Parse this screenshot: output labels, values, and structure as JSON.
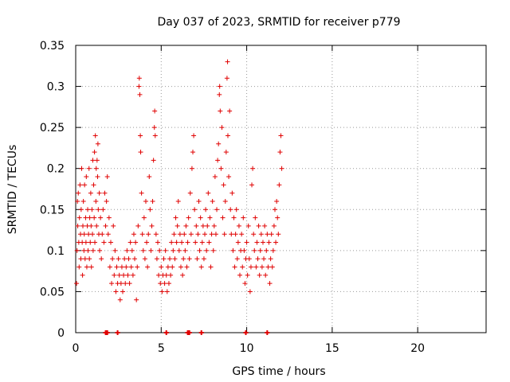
{
  "chart_data": {
    "type": "scatter",
    "title": "Day 037 of 2023, SRMTID for receiver p779",
    "xlabel": "GPS time / hours",
    "ylabel": "SRMTID / TECUs",
    "xlim": [
      0,
      24
    ],
    "ylim": [
      0,
      0.35
    ],
    "xticks": [
      0,
      5,
      10,
      15,
      20
    ],
    "xtick_labels": [
      "0",
      "5",
      "10",
      "15",
      "20"
    ],
    "yticks": [
      0,
      0.05,
      0.1,
      0.15,
      0.2,
      0.25,
      0.3,
      0.35
    ],
    "ytick_labels": [
      "0",
      "0.05",
      "0.1",
      "0.15",
      "0.2",
      "0.25",
      "0.3",
      "0.35"
    ],
    "grid": true,
    "marker": "+",
    "series_color": "#e00000",
    "series": [
      {
        "name": "SRMTID",
        "points": [
          [
            0.05,
            0.06
          ],
          [
            0.08,
            0.1
          ],
          [
            0.1,
            0.16
          ],
          [
            0.12,
            0.13
          ],
          [
            0.15,
            0.17
          ],
          [
            0.18,
            0.11
          ],
          [
            0.2,
            0.08
          ],
          [
            0.22,
            0.14
          ],
          [
            0.25,
            0.18
          ],
          [
            0.28,
            0.12
          ],
          [
            0.3,
            0.09
          ],
          [
            0.32,
            0.15
          ],
          [
            0.35,
            0.2
          ],
          [
            0.38,
            0.11
          ],
          [
            0.4,
            0.07
          ],
          [
            0.42,
            0.13
          ],
          [
            0.45,
            0.16
          ],
          [
            0.48,
            0.1
          ],
          [
            0.5,
            0.12
          ],
          [
            0.52,
            0.18
          ],
          [
            0.55,
            0.09
          ],
          [
            0.58,
            0.14
          ],
          [
            0.6,
            0.11
          ],
          [
            0.62,
            0.19
          ],
          [
            0.65,
            0.08
          ],
          [
            0.68,
            0.13
          ],
          [
            0.7,
            0.15
          ],
          [
            0.72,
            0.1
          ],
          [
            0.75,
            0.12
          ],
          [
            0.78,
            0.2
          ],
          [
            0.8,
            0.09
          ],
          [
            0.82,
            0.14
          ],
          [
            0.85,
            0.11
          ],
          [
            0.88,
            0.17
          ],
          [
            0.9,
            0.13
          ],
          [
            0.92,
            0.08
          ],
          [
            0.95,
            0.15
          ],
          [
            0.98,
            0.12
          ],
          [
            1.0,
            0.21
          ],
          [
            1.02,
            0.1
          ],
          [
            1.05,
            0.18
          ],
          [
            1.08,
            0.14
          ],
          [
            1.1,
            0.22
          ],
          [
            1.12,
            0.11
          ],
          [
            1.15,
            0.24
          ],
          [
            1.18,
            0.16
          ],
          [
            1.2,
            0.2
          ],
          [
            1.22,
            0.13
          ],
          [
            1.25,
            0.21
          ],
          [
            1.28,
            0.19
          ],
          [
            1.3,
            0.23
          ],
          [
            1.32,
            0.15
          ],
          [
            1.35,
            0.12
          ],
          [
            1.38,
            0.17
          ],
          [
            1.4,
            0.1
          ],
          [
            1.45,
            0.14
          ],
          [
            1.5,
            0.09
          ],
          [
            1.55,
            0.12
          ],
          [
            1.6,
            0.15
          ],
          [
            1.65,
            0.11
          ],
          [
            1.7,
            0.17
          ],
          [
            1.75,
            0.13
          ],
          [
            1.8,
            0.16
          ],
          [
            1.85,
            0.19
          ],
          [
            1.9,
            0.12
          ],
          [
            1.95,
            0.14
          ],
          [
            2.0,
            0.08
          ],
          [
            2.05,
            0.11
          ],
          [
            2.1,
            0.06
          ],
          [
            2.15,
            0.09
          ],
          [
            2.2,
            0.13
          ],
          [
            2.25,
            0.07
          ],
          [
            2.3,
            0.1
          ],
          [
            2.35,
            0.05
          ],
          [
            2.4,
            0.08
          ],
          [
            2.45,
            0.06
          ],
          [
            2.5,
            0.09
          ],
          [
            2.55,
            0.07
          ],
          [
            2.6,
            0.04
          ],
          [
            2.65,
            0.06
          ],
          [
            2.7,
            0.08
          ],
          [
            2.75,
            0.05
          ],
          [
            2.8,
            0.07
          ],
          [
            2.85,
            0.09
          ],
          [
            2.9,
            0.06
          ],
          [
            2.95,
            0.08
          ],
          [
            3.0,
            0.1
          ],
          [
            3.05,
            0.07
          ],
          [
            3.1,
            0.09
          ],
          [
            3.15,
            0.06
          ],
          [
            3.2,
            0.11
          ],
          [
            3.25,
            0.08
          ],
          [
            3.3,
            0.1
          ],
          [
            3.35,
            0.07
          ],
          [
            3.4,
            0.12
          ],
          [
            3.45,
            0.09
          ],
          [
            3.5,
            0.11
          ],
          [
            3.55,
            0.04
          ],
          [
            3.6,
            0.08
          ],
          [
            3.65,
            0.13
          ],
          [
            3.7,
            0.3
          ],
          [
            3.72,
            0.31
          ],
          [
            3.75,
            0.29
          ],
          [
            3.78,
            0.24
          ],
          [
            3.8,
            0.22
          ],
          [
            3.85,
            0.17
          ],
          [
            3.9,
            0.12
          ],
          [
            3.95,
            0.1
          ],
          [
            4.0,
            0.14
          ],
          [
            4.05,
            0.09
          ],
          [
            4.1,
            0.16
          ],
          [
            4.15,
            0.11
          ],
          [
            4.2,
            0.08
          ],
          [
            4.25,
            0.12
          ],
          [
            4.3,
            0.19
          ],
          [
            4.35,
            0.15
          ],
          [
            4.4,
            0.1
          ],
          [
            4.45,
            0.13
          ],
          [
            4.5,
            0.16
          ],
          [
            4.55,
            0.21
          ],
          [
            4.6,
            0.25
          ],
          [
            4.62,
            0.27
          ],
          [
            4.65,
            0.24
          ],
          [
            4.7,
            0.12
          ],
          [
            4.75,
            0.09
          ],
          [
            4.8,
            0.11
          ],
          [
            4.85,
            0.07
          ],
          [
            4.9,
            0.1
          ],
          [
            4.95,
            0.06
          ],
          [
            5.0,
            0.08
          ],
          [
            5.05,
            0.05
          ],
          [
            5.1,
            0.07
          ],
          [
            5.15,
            0.09
          ],
          [
            5.2,
            0.06
          ],
          [
            5.25,
            0.1
          ],
          [
            5.3,
            0.07
          ],
          [
            5.35,
            0.05
          ],
          [
            5.4,
            0.08
          ],
          [
            5.45,
            0.06
          ],
          [
            5.5,
            0.09
          ],
          [
            5.55,
            0.07
          ],
          [
            5.6,
            0.11
          ],
          [
            5.65,
            0.08
          ],
          [
            5.7,
            0.1
          ],
          [
            5.75,
            0.12
          ],
          [
            5.8,
            0.09
          ],
          [
            5.85,
            0.14
          ],
          [
            5.9,
            0.11
          ],
          [
            5.95,
            0.13
          ],
          [
            6.0,
            0.16
          ],
          [
            6.05,
            0.1
          ],
          [
            6.1,
            0.12
          ],
          [
            6.15,
            0.08
          ],
          [
            6.2,
            0.11
          ],
          [
            6.25,
            0.07
          ],
          [
            6.3,
            0.09
          ],
          [
            6.35,
            0.12
          ],
          [
            6.4,
            0.1
          ],
          [
            6.45,
            0.13
          ],
          [
            6.5,
            0.08
          ],
          [
            6.55,
            0.11
          ],
          [
            6.6,
            0.14
          ],
          [
            6.65,
            0.09
          ],
          [
            6.7,
            0.17
          ],
          [
            6.75,
            0.12
          ],
          [
            6.8,
            0.2
          ],
          [
            6.85,
            0.22
          ],
          [
            6.9,
            0.24
          ],
          [
            6.95,
            0.15
          ],
          [
            7.0,
            0.11
          ],
          [
            7.05,
            0.13
          ],
          [
            7.1,
            0.09
          ],
          [
            7.15,
            0.12
          ],
          [
            7.2,
            0.16
          ],
          [
            7.25,
            0.1
          ],
          [
            7.3,
            0.14
          ],
          [
            7.35,
            0.08
          ],
          [
            7.4,
            0.11
          ],
          [
            7.45,
            0.13
          ],
          [
            7.5,
            0.09
          ],
          [
            7.55,
            0.12
          ],
          [
            7.6,
            0.15
          ],
          [
            7.65,
            0.1
          ],
          [
            7.7,
            0.13
          ],
          [
            7.75,
            0.17
          ],
          [
            7.8,
            0.11
          ],
          [
            7.85,
            0.14
          ],
          [
            7.9,
            0.08
          ],
          [
            7.95,
            0.12
          ],
          [
            8.0,
            0.16
          ],
          [
            8.05,
            0.1
          ],
          [
            8.1,
            0.13
          ],
          [
            8.15,
            0.19
          ],
          [
            8.2,
            0.12
          ],
          [
            8.25,
            0.15
          ],
          [
            8.3,
            0.21
          ],
          [
            8.35,
            0.23
          ],
          [
            8.4,
            0.29
          ],
          [
            8.42,
            0.3
          ],
          [
            8.45,
            0.27
          ],
          [
            8.5,
            0.2
          ],
          [
            8.55,
            0.25
          ],
          [
            8.6,
            0.14
          ],
          [
            8.65,
            0.18
          ],
          [
            8.7,
            0.12
          ],
          [
            8.75,
            0.16
          ],
          [
            8.8,
            0.22
          ],
          [
            8.85,
            0.31
          ],
          [
            8.88,
            0.33
          ],
          [
            8.9,
            0.24
          ],
          [
            8.95,
            0.19
          ],
          [
            9.0,
            0.27
          ],
          [
            9.05,
            0.15
          ],
          [
            9.1,
            0.12
          ],
          [
            9.15,
            0.17
          ],
          [
            9.2,
            0.1
          ],
          [
            9.25,
            0.14
          ],
          [
            9.3,
            0.08
          ],
          [
            9.35,
            0.12
          ],
          [
            9.4,
            0.15
          ],
          [
            9.45,
            0.09
          ],
          [
            9.5,
            0.11
          ],
          [
            9.55,
            0.13
          ],
          [
            9.6,
            0.07
          ],
          [
            9.65,
            0.1
          ],
          [
            9.7,
            0.12
          ],
          [
            9.75,
            0.08
          ],
          [
            9.8,
            0.14
          ],
          [
            9.85,
            0.1
          ],
          [
            9.9,
            0.06
          ],
          [
            9.95,
            0.09
          ],
          [
            10.0,
            0.11
          ],
          [
            10.05,
            0.07
          ],
          [
            10.1,
            0.13
          ],
          [
            10.15,
            0.09
          ],
          [
            10.2,
            0.05
          ],
          [
            10.25,
            0.08
          ],
          [
            10.3,
            0.18
          ],
          [
            10.35,
            0.2
          ],
          [
            10.4,
            0.12
          ],
          [
            10.45,
            0.1
          ],
          [
            10.5,
            0.14
          ],
          [
            10.55,
            0.08
          ],
          [
            10.6,
            0.11
          ],
          [
            10.65,
            0.09
          ],
          [
            10.7,
            0.13
          ],
          [
            10.75,
            0.07
          ],
          [
            10.8,
            0.1
          ],
          [
            10.85,
            0.12
          ],
          [
            10.9,
            0.08
          ],
          [
            10.95,
            0.11
          ],
          [
            11.0,
            0.09
          ],
          [
            11.05,
            0.13
          ],
          [
            11.1,
            0.07
          ],
          [
            11.15,
            0.1
          ],
          [
            11.2,
            0.12
          ],
          [
            11.25,
            0.08
          ],
          [
            11.3,
            0.11
          ],
          [
            11.35,
            0.06
          ],
          [
            11.4,
            0.09
          ],
          [
            11.45,
            0.12
          ],
          [
            11.5,
            0.08
          ],
          [
            11.55,
            0.1
          ],
          [
            11.6,
            0.13
          ],
          [
            11.65,
            0.15
          ],
          [
            11.7,
            0.11
          ],
          [
            11.75,
            0.16
          ],
          [
            11.8,
            0.14
          ],
          [
            11.85,
            0.12
          ],
          [
            11.9,
            0.18
          ],
          [
            11.95,
            0.22
          ],
          [
            12.0,
            0.24
          ],
          [
            12.05,
            0.2
          ]
        ]
      }
    ],
    "zero_markers_x": [
      1.75,
      1.8,
      1.85,
      2.45,
      5.3,
      6.55,
      6.6,
      6.65,
      7.35,
      9.95,
      11.2
    ]
  }
}
